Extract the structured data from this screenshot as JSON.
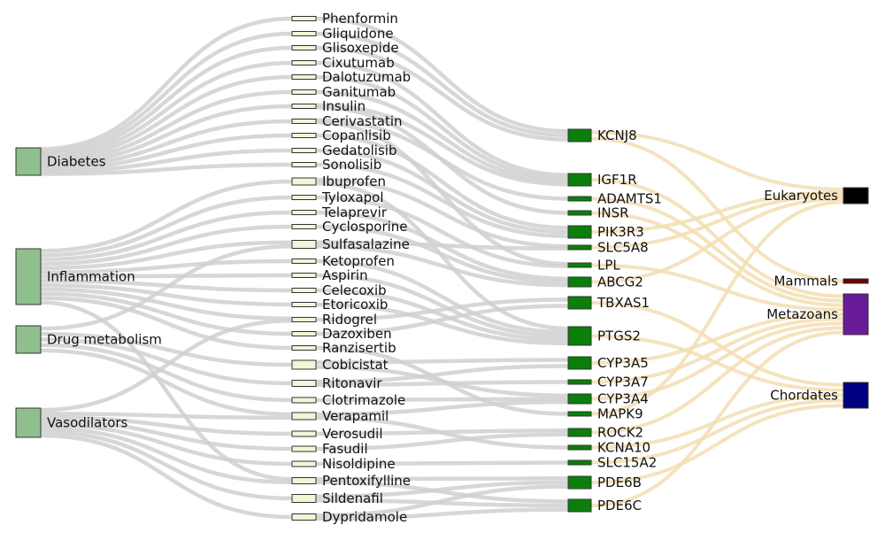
{
  "colors": {
    "link_gray": "#d0d0d0",
    "link_tan": "#f3deb3",
    "disease": "#8fbf8f",
    "drug": "#f4f4d8",
    "gene": "#0a800a",
    "Eukaryotes": "#000000",
    "Mammals": "#6b0000",
    "Metazoans": "#6a1b9a",
    "Chordates": "#000080"
  },
  "columns": {
    "diseases": [
      "Diabetes",
      "Inflammation",
      "Drug metabolism",
      "Vasodilators"
    ],
    "drugs": [
      "Phenformin",
      "Gliquidone",
      "Glisoxepide",
      "Cixutumab",
      "Dalotuzumab",
      "Ganitumab",
      "Insulin",
      "Cerivastatin",
      "Copanlisib",
      "Gedatolisib",
      "Sonolisib",
      "Ibuprofen",
      "Tyloxapol",
      "Telaprevir",
      "Cyclosporine",
      "Sulfasalazine",
      "Ketoprofen",
      "Aspirin",
      "Celecoxib",
      "Etoricoxib",
      "Ridogrel",
      "Dazoxiben",
      "Ranzisertib",
      "Cobicistat",
      "Ritonavir",
      "Clotrimazole",
      "Verapamil",
      "Verosudil",
      "Fasudil",
      "Nisoldipine",
      "Pentoxifylline",
      "Sildenafil",
      "Dypridamole"
    ],
    "genes": [
      "KCNJ8",
      "IGF1R",
      "ADAMTS1",
      "INSR",
      "PIK3R3",
      "SLC5A8",
      "LPL",
      "ABCG2",
      "TBXAS1",
      "PTGS2",
      "CYP3A5",
      "CYP3A7",
      "CYP3A4",
      "MAPK9",
      "ROCK2",
      "KCNA10",
      "SLC15A2",
      "PDE6B",
      "PDE6C"
    ],
    "taxa": [
      "Eukaryotes",
      "Mammals",
      "Metazoans",
      "Chordates"
    ]
  },
  "links": {
    "disease_drug": [
      [
        "Diabetes",
        "Phenformin"
      ],
      [
        "Diabetes",
        "Gliquidone"
      ],
      [
        "Diabetes",
        "Glisoxepide"
      ],
      [
        "Diabetes",
        "Cixutumab"
      ],
      [
        "Diabetes",
        "Dalotuzumab"
      ],
      [
        "Diabetes",
        "Ganitumab"
      ],
      [
        "Diabetes",
        "Insulin"
      ],
      [
        "Diabetes",
        "Cerivastatin"
      ],
      [
        "Diabetes",
        "Copanlisib"
      ],
      [
        "Diabetes",
        "Gedatolisib"
      ],
      [
        "Diabetes",
        "Sonolisib"
      ],
      [
        "Inflammation",
        "Ibuprofen"
      ],
      [
        "Inflammation",
        "Tyloxapol"
      ],
      [
        "Inflammation",
        "Telaprevir"
      ],
      [
        "Inflammation",
        "Cyclosporine"
      ],
      [
        "Inflammation",
        "Sulfasalazine"
      ],
      [
        "Inflammation",
        "Ketoprofen"
      ],
      [
        "Inflammation",
        "Aspirin"
      ],
      [
        "Inflammation",
        "Celecoxib"
      ],
      [
        "Inflammation",
        "Etoricoxib"
      ],
      [
        "Inflammation",
        "Ridogrel"
      ],
      [
        "Inflammation",
        "Dazoxiben"
      ],
      [
        "Inflammation",
        "Ranzisertib"
      ],
      [
        "Inflammation",
        "Pentoxifylline"
      ],
      [
        "Drug metabolism",
        "Cobicistat"
      ],
      [
        "Drug metabolism",
        "Ritonavir"
      ],
      [
        "Drug metabolism",
        "Clotrimazole"
      ],
      [
        "Drug metabolism",
        "Verapamil"
      ],
      [
        "Drug metabolism",
        "Sulfasalazine"
      ],
      [
        "Vasodilators",
        "Verapamil"
      ],
      [
        "Vasodilators",
        "Verosudil"
      ],
      [
        "Vasodilators",
        "Fasudil"
      ],
      [
        "Vasodilators",
        "Nisoldipine"
      ],
      [
        "Vasodilators",
        "Pentoxifylline"
      ],
      [
        "Vasodilators",
        "Sildenafil"
      ],
      [
        "Vasodilators",
        "Dypridamole"
      ],
      [
        "Vasodilators",
        "Ridogrel"
      ]
    ],
    "drug_gene": [
      [
        "Phenformin",
        "KCNJ8"
      ],
      [
        "Gliquidone",
        "KCNJ8"
      ],
      [
        "Glisoxepide",
        "KCNJ8"
      ],
      [
        "Cixutumab",
        "IGF1R"
      ],
      [
        "Dalotuzumab",
        "IGF1R"
      ],
      [
        "Ganitumab",
        "IGF1R"
      ],
      [
        "Insulin",
        "INSR"
      ],
      [
        "Insulin",
        "IGF1R"
      ],
      [
        "Cerivastatin",
        "LPL"
      ],
      [
        "Cerivastatin",
        "ADAMTS1"
      ],
      [
        "Copanlisib",
        "PIK3R3"
      ],
      [
        "Gedatolisib",
        "PIK3R3"
      ],
      [
        "Sonolisib",
        "PIK3R3"
      ],
      [
        "Ibuprofen",
        "SLC5A8"
      ],
      [
        "Ibuprofen",
        "PTGS2"
      ],
      [
        "Tyloxapol",
        "LPL"
      ],
      [
        "Telaprevir",
        "ABCG2"
      ],
      [
        "Cyclosporine",
        "ABCG2"
      ],
      [
        "Sulfasalazine",
        "ABCG2"
      ],
      [
        "Sulfasalazine",
        "SLC5A8"
      ],
      [
        "Ketoprofen",
        "PTGS2"
      ],
      [
        "Aspirin",
        "PTGS2"
      ],
      [
        "Celecoxib",
        "PTGS2"
      ],
      [
        "Etoricoxib",
        "PTGS2"
      ],
      [
        "Ridogrel",
        "TBXAS1"
      ],
      [
        "Dazoxiben",
        "TBXAS1"
      ],
      [
        "Ranzisertib",
        "MAPK9"
      ],
      [
        "Cobicistat",
        "CYP3A5"
      ],
      [
        "Cobicistat",
        "CYP3A4"
      ],
      [
        "Ritonavir",
        "CYP3A7"
      ],
      [
        "Ritonavir",
        "CYP3A5"
      ],
      [
        "Clotrimazole",
        "CYP3A4"
      ],
      [
        "Verapamil",
        "KCNA10"
      ],
      [
        "Verapamil",
        "CYP3A4"
      ],
      [
        "Verosudil",
        "ROCK2"
      ],
      [
        "Fasudil",
        "ROCK2"
      ],
      [
        "Nisoldipine",
        "SLC15A2"
      ],
      [
        "Pentoxifylline",
        "PDE6B"
      ],
      [
        "Pentoxifylline",
        "PDE6C"
      ],
      [
        "Sildenafil",
        "PDE6B"
      ],
      [
        "Sildenafil",
        "PDE6C"
      ],
      [
        "Dypridamole",
        "PDE6C"
      ],
      [
        "Dypridamole",
        "PDE6B"
      ]
    ],
    "gene_taxon": [
      [
        "KCNJ8",
        "Eukaryotes"
      ],
      [
        "KCNJ8",
        "Mammals"
      ],
      [
        "IGF1R",
        "Metazoans"
      ],
      [
        "ADAMTS1",
        "Metazoans"
      ],
      [
        "INSR",
        "Metazoans"
      ],
      [
        "PIK3R3",
        "Eukaryotes"
      ],
      [
        "SLC5A8",
        "Eukaryotes"
      ],
      [
        "LPL",
        "Metazoans"
      ],
      [
        "ABCG2",
        "Eukaryotes"
      ],
      [
        "TBXAS1",
        "Chordates"
      ],
      [
        "PTGS2",
        "Chordates"
      ],
      [
        "CYP3A5",
        "Metazoans"
      ],
      [
        "CYP3A7",
        "Metazoans"
      ],
      [
        "CYP3A4",
        "Metazoans"
      ],
      [
        "MAPK9",
        "Eukaryotes"
      ],
      [
        "ROCK2",
        "Metazoans"
      ],
      [
        "KCNA10",
        "Chordates"
      ],
      [
        "SLC15A2",
        "Chordates"
      ],
      [
        "PDE6B",
        "Chordates"
      ],
      [
        "PDE6C",
        "Metazoans"
      ]
    ]
  }
}
